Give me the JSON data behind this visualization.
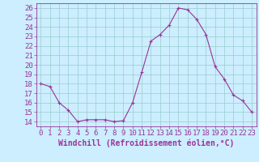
{
  "x": [
    0,
    1,
    2,
    3,
    4,
    5,
    6,
    7,
    8,
    9,
    10,
    11,
    12,
    13,
    14,
    15,
    16,
    17,
    18,
    19,
    20,
    21,
    22,
    23
  ],
  "y": [
    18.0,
    17.7,
    16.0,
    15.2,
    14.0,
    14.2,
    14.2,
    14.2,
    14.0,
    14.1,
    16.0,
    19.2,
    22.5,
    23.2,
    24.2,
    26.0,
    25.8,
    24.8,
    23.2,
    19.8,
    18.5,
    16.8,
    16.2,
    15.0
  ],
  "line_color": "#993399",
  "marker": "+",
  "marker_color": "#993399",
  "bg_color": "#cceeff",
  "grid_color": "#99cccc",
  "xlabel": "Windchill (Refroidissement éolien,°C)",
  "xlim": [
    -0.5,
    23.5
  ],
  "ylim": [
    13.5,
    26.5
  ],
  "yticks": [
    14,
    15,
    16,
    17,
    18,
    19,
    20,
    21,
    22,
    23,
    24,
    25,
    26
  ],
  "xticks": [
    0,
    1,
    2,
    3,
    4,
    5,
    6,
    7,
    8,
    9,
    10,
    11,
    12,
    13,
    14,
    15,
    16,
    17,
    18,
    19,
    20,
    21,
    22,
    23
  ],
  "label_fontsize": 7.0,
  "tick_fontsize": 6.5
}
